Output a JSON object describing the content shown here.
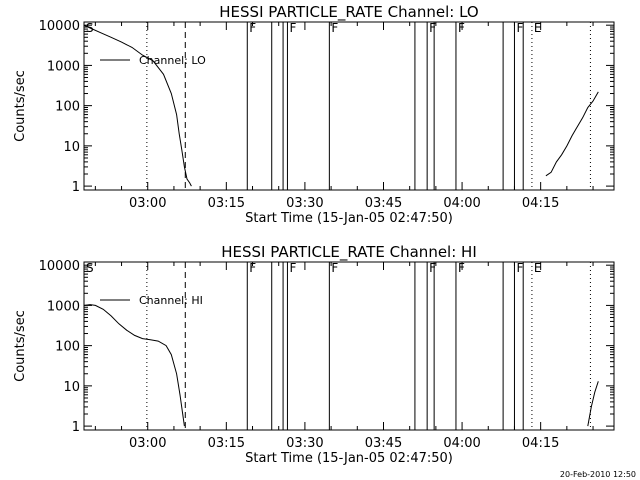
{
  "chart_data": [
    {
      "type": "line",
      "title": "HESSI PARTICLE_RATE Channel: LO",
      "xlabel": "Start Time (15-Jan-05 02:47:50)",
      "ylabel": "Counts/sec",
      "yscale": "log",
      "ylim": [
        0.8,
        12000
      ],
      "xlim": [
        "02:47:50",
        "04:29:00"
      ],
      "x_ticks": [
        "03:00",
        "03:15",
        "03:30",
        "03:45",
        "04:00",
        "04:15"
      ],
      "y_ticks": [
        "1",
        "10",
        "100",
        "1000",
        "10000"
      ],
      "legend": {
        "label": "Channel: LO",
        "position": "upper-left"
      },
      "series": [
        {
          "name": "Channel: LO",
          "segments": [
            {
              "x": [
                "02:47:50",
                "02:49:00",
                "02:51:00",
                "02:53:00",
                "02:55:00",
                "02:57:00",
                "02:59:00",
                "03:01:00",
                "03:03:00",
                "03:04:30",
                "03:05:30",
                "03:06:00",
                "03:06:30",
                "03:07:00",
                "03:07:30",
                "03:08:00",
                "03:08:20"
              ],
              "y": [
                10000,
                8500,
                6500,
                5000,
                3800,
                2800,
                1800,
                1300,
                600,
                200,
                60,
                20,
                8,
                3,
                1.5,
                1.2,
                1
              ]
            },
            {
              "x": [
                "04:16:00",
                "04:17:00",
                "04:18:00",
                "04:19:00",
                "04:20:00",
                "04:21:00",
                "04:22:00",
                "04:23:00",
                "04:24:00",
                "04:25:00",
                "04:26:00"
              ],
              "y": [
                1.8,
                2.2,
                4,
                6,
                10,
                18,
                30,
                50,
                90,
                130,
                220
              ]
            }
          ]
        }
      ],
      "markers": [
        {
          "label": "S",
          "time": "02:47:50",
          "style": "solid"
        },
        {
          "label": "",
          "time": "02:59:50",
          "style": "dotted"
        },
        {
          "label": "",
          "time": "03:07:10",
          "style": "dashed"
        },
        {
          "label": "F",
          "time": "03:19:00",
          "style": "solid"
        },
        {
          "label": "",
          "time": "03:23:40",
          "style": "solid"
        },
        {
          "label": "",
          "time": "03:25:50",
          "style": "solid"
        },
        {
          "label": "F",
          "time": "03:26:40",
          "style": "solid"
        },
        {
          "label": "F",
          "time": "03:34:40",
          "style": "solid"
        },
        {
          "label": "",
          "time": "03:51:00",
          "style": "solid"
        },
        {
          "label": "F",
          "time": "03:53:20",
          "style": "solid"
        },
        {
          "label": "",
          "time": "03:54:40",
          "style": "solid"
        },
        {
          "label": "F",
          "time": "03:58:50",
          "style": "solid"
        },
        {
          "label": "",
          "time": "04:07:50",
          "style": "solid"
        },
        {
          "label": "F",
          "time": "04:10:00",
          "style": "solid"
        },
        {
          "label": "",
          "time": "04:11:40",
          "style": "solid"
        },
        {
          "label": "E",
          "time": "04:13:20",
          "style": "dotted"
        },
        {
          "label": "",
          "time": "04:24:30",
          "style": "dotted"
        }
      ]
    },
    {
      "type": "line",
      "title": "HESSI PARTICLE_RATE Channel: HI",
      "xlabel": "Start Time (15-Jan-05 02:47:50)",
      "ylabel": "Counts/sec",
      "yscale": "log",
      "ylim": [
        0.8,
        12000
      ],
      "xlim": [
        "02:47:50",
        "04:29:00"
      ],
      "x_ticks": [
        "03:00",
        "03:15",
        "03:30",
        "03:45",
        "04:00",
        "04:15"
      ],
      "y_ticks": [
        "1",
        "10",
        "100",
        "1000",
        "10000"
      ],
      "legend": {
        "label": "Channel: HI",
        "position": "upper-left"
      },
      "series": [
        {
          "name": "Channel: HI",
          "segments": [
            {
              "x": [
                "02:47:50",
                "02:49:00",
                "02:50:00",
                "02:51:30",
                "02:53:00",
                "02:54:30",
                "02:56:00",
                "02:57:30",
                "02:59:00",
                "03:00:30",
                "03:02:00",
                "03:03:30",
                "03:04:30",
                "03:05:30",
                "03:06:10",
                "03:06:40",
                "03:07:00"
              ],
              "y": [
                1000,
                1050,
                1000,
                800,
                550,
                350,
                240,
                180,
                150,
                140,
                130,
                100,
                60,
                20,
                6,
                2,
                1
              ]
            },
            {
              "x": [
                "04:24:00",
                "04:24:40",
                "04:25:20",
                "04:26:00"
              ],
              "y": [
                1,
                3,
                7,
                13
              ]
            }
          ]
        }
      ],
      "markers": [
        {
          "label": "S",
          "time": "02:47:50",
          "style": "solid"
        },
        {
          "label": "",
          "time": "02:59:50",
          "style": "dotted"
        },
        {
          "label": "",
          "time": "03:07:10",
          "style": "dashed"
        },
        {
          "label": "F",
          "time": "03:19:00",
          "style": "solid"
        },
        {
          "label": "",
          "time": "03:23:40",
          "style": "solid"
        },
        {
          "label": "",
          "time": "03:25:50",
          "style": "solid"
        },
        {
          "label": "F",
          "time": "03:26:40",
          "style": "solid"
        },
        {
          "label": "F",
          "time": "03:34:40",
          "style": "solid"
        },
        {
          "label": "",
          "time": "03:51:00",
          "style": "solid"
        },
        {
          "label": "F",
          "time": "03:53:20",
          "style": "solid"
        },
        {
          "label": "",
          "time": "03:54:40",
          "style": "solid"
        },
        {
          "label": "F",
          "time": "03:58:50",
          "style": "solid"
        },
        {
          "label": "",
          "time": "04:07:50",
          "style": "solid"
        },
        {
          "label": "F",
          "time": "04:10:00",
          "style": "solid"
        },
        {
          "label": "",
          "time": "04:11:40",
          "style": "solid"
        },
        {
          "label": "E",
          "time": "04:13:20",
          "style": "dotted"
        },
        {
          "label": "",
          "time": "04:24:30",
          "style": "dotted"
        }
      ]
    }
  ],
  "footer": {
    "timestamp": "20-Feb-2010 12:50"
  }
}
